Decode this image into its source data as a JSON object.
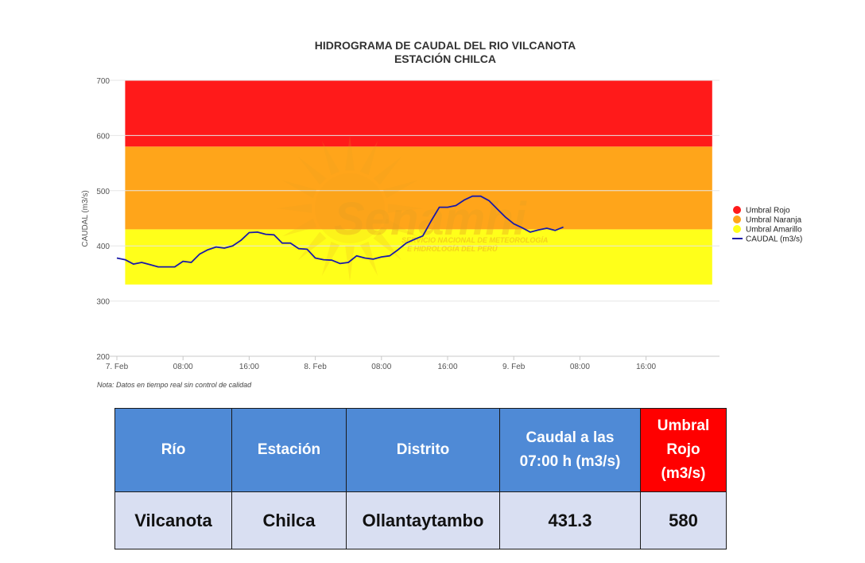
{
  "colors": {
    "red_band": "#ff1a1a",
    "orange_band": "#ffa51a",
    "yellow_band": "#ffff1a",
    "line": "#1a1aa8",
    "header_blue": "#4f8ad6",
    "header_red": "#ff0000",
    "cell_bg": "#d9dff2"
  },
  "chart_data": {
    "type": "line",
    "title": "HIDROGRAMA DE CAUDAL DEL RIO VILCANOTA",
    "subtitle": "ESTACIÓN CHILCA",
    "ylabel": "CAUDAL (m3/s)",
    "ylim": [
      200,
      700
    ],
    "yticks": [
      200,
      300,
      400,
      500,
      600,
      700
    ],
    "x_unit": "hours since 7. Feb 00:00",
    "xlim": [
      0,
      66
    ],
    "xticks": [
      {
        "at": 0,
        "label": "7. Feb"
      },
      {
        "at": 8,
        "label": "08:00"
      },
      {
        "at": 16,
        "label": "16:00"
      },
      {
        "at": 24,
        "label": "8. Feb"
      },
      {
        "at": 32,
        "label": "08:00"
      },
      {
        "at": 40,
        "label": "16:00"
      },
      {
        "at": 48,
        "label": "9. Feb"
      },
      {
        "at": 56,
        "label": "08:00"
      },
      {
        "at": 64,
        "label": "16:00"
      }
    ],
    "bands": [
      {
        "name": "Umbral Amarillo",
        "from": 330,
        "to": 430,
        "color": "#ffff1a"
      },
      {
        "name": "Umbral Naranja",
        "from": 430,
        "to": 580,
        "color": "#ffa51a"
      },
      {
        "name": "Umbral Rojo",
        "from": 580,
        "to": 700,
        "color": "#ff1a1a"
      }
    ],
    "band_x_range": [
      1,
      72
    ],
    "series": [
      {
        "name": "CAUDAL (m3/s)",
        "x": [
          0,
          1,
          2,
          3,
          4,
          5,
          6,
          7,
          8,
          9,
          10,
          11,
          12,
          13,
          14,
          15,
          16,
          17,
          18,
          19,
          20,
          21,
          22,
          23,
          24,
          25,
          26,
          27,
          28,
          29,
          30,
          31,
          32,
          33,
          34,
          35,
          36,
          37,
          38,
          39,
          40,
          41,
          42,
          43,
          44,
          45,
          46,
          47,
          48,
          49,
          50,
          51,
          52,
          53,
          54
        ],
        "y": [
          378,
          375,
          367,
          370,
          366,
          362,
          362,
          362,
          372,
          370,
          385,
          393,
          398,
          396,
          400,
          410,
          424,
          425,
          421,
          420,
          405,
          405,
          395,
          394,
          378,
          375,
          374,
          368,
          370,
          382,
          378,
          376,
          380,
          382,
          393,
          405,
          412,
          418,
          445,
          470,
          470,
          473,
          483,
          490,
          490,
          482,
          467,
          452,
          440,
          433,
          425,
          429,
          432,
          428,
          434
        ]
      }
    ],
    "legend": [
      "Umbral Rojo",
      "Umbral Naranja",
      "Umbral Amarillo",
      "CAUDAL (m3/s)"
    ],
    "legend_position": "right",
    "note": "Nota: Datos en tiempo real sin control de calidad",
    "watermark": {
      "brand": "Senamhi",
      "line1": "SERVICIO NACIONAL DE METEOROLOGÍA",
      "line2": "E HIDROLOGÍA DEL PERÚ"
    }
  },
  "table": {
    "headers": [
      "Río",
      "Estación",
      "Distrito",
      "Caudal a las 07:00 h (m3/s)",
      "Umbral Rojo (m3/s)"
    ],
    "rows": [
      [
        "Vilcanota",
        "Chilca",
        "Ollantaytambo",
        "431.3",
        "580"
      ]
    ]
  }
}
